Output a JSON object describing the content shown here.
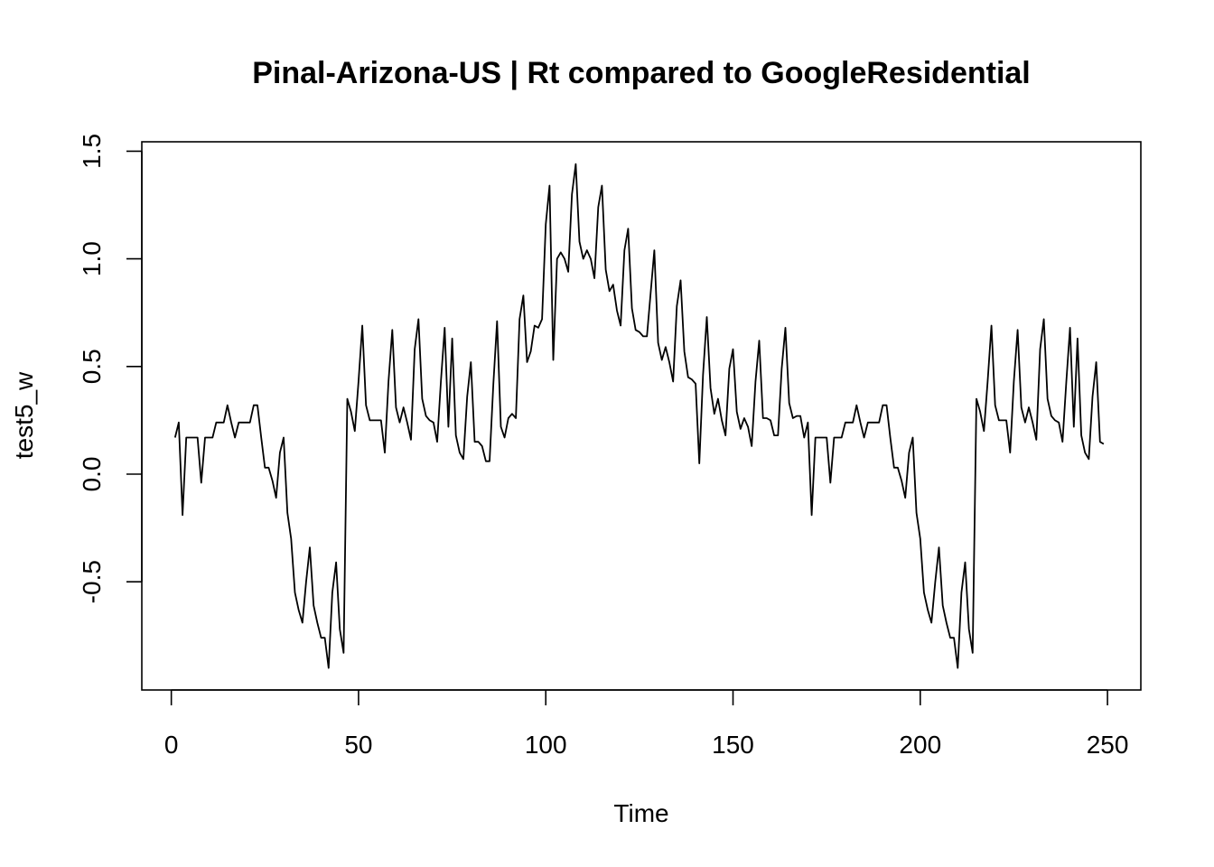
{
  "chart_data": {
    "type": "line",
    "title": "Pinal-Arizona-US | Rt compared to GoogleResidential",
    "xlabel": "Time",
    "ylabel": "test5_w",
    "xlim": [
      1,
      248
    ],
    "ylim": [
      -0.9,
      1.45
    ],
    "xticks": [
      0,
      50,
      100,
      150,
      200,
      250
    ],
    "yticks": [
      -0.5,
      0.0,
      0.5,
      1.0,
      1.5
    ],
    "xtick_labels": [
      "0",
      "50",
      "100",
      "150",
      "200",
      "250"
    ],
    "ytick_labels": [
      "-0.5",
      "0.0",
      "0.5",
      "1.0",
      "1.5"
    ],
    "grid": false,
    "series": [
      {
        "values": [
          0.17,
          0.24,
          -0.19,
          0.17,
          0.17,
          0.17,
          0.17,
          -0.04,
          0.17,
          0.17,
          0.17,
          0.24,
          0.24,
          0.24,
          0.32,
          0.24,
          0.17,
          0.24,
          0.24,
          0.24,
          0.24,
          0.32,
          0.32,
          0.17,
          0.03,
          0.03,
          -0.03,
          -0.11,
          0.1,
          0.17,
          -0.18,
          -0.3,
          -0.55,
          -0.63,
          -0.69,
          -0.5,
          -0.34,
          -0.61,
          -0.69,
          -0.76,
          -0.76,
          -0.9,
          -0.55,
          -0.41,
          -0.72,
          -0.83,
          0.35,
          0.29,
          0.2,
          0.43,
          0.69,
          0.32,
          0.25,
          0.25,
          0.25,
          0.25,
          0.1,
          0.43,
          0.67,
          0.31,
          0.24,
          0.31,
          0.24,
          0.16,
          0.58,
          0.72,
          0.35,
          0.27,
          0.25,
          0.24,
          0.15,
          0.43,
          0.68,
          0.22,
          0.63,
          0.18,
          0.1,
          0.07,
          0.36,
          0.52,
          0.15,
          0.15,
          0.13,
          0.06,
          0.06,
          0.42,
          0.71,
          0.22,
          0.17,
          0.26,
          0.28,
          0.26,
          0.72,
          0.83,
          0.52,
          0.57,
          0.69,
          0.68,
          0.72,
          1.16,
          1.34,
          0.53,
          1.0,
          1.03,
          1.0,
          0.94,
          1.3,
          1.44,
          1.08,
          1.0,
          1.04,
          1.0,
          0.91,
          1.24,
          1.34,
          0.95,
          0.85,
          0.88,
          0.76,
          0.69,
          1.04,
          1.14,
          0.77,
          0.67,
          0.66,
          0.64,
          0.64,
          0.84,
          1.04,
          0.61,
          0.53,
          0.59,
          0.52,
          0.43,
          0.78,
          0.9,
          0.57,
          0.45,
          0.44,
          0.42,
          0.05,
          0.46,
          0.73,
          0.4,
          0.28,
          0.35,
          0.25,
          0.18,
          0.49,
          0.58,
          0.29,
          0.21,
          0.26,
          0.22,
          0.13,
          0.43,
          0.62,
          0.26,
          0.26,
          0.25,
          0.18,
          0.18,
          0.49,
          0.68,
          0.33,
          0.26,
          0.27,
          0.27,
          0.17,
          0.24,
          -0.19,
          0.17,
          0.17,
          0.17,
          0.17,
          -0.04,
          0.17,
          0.17,
          0.17,
          0.24,
          0.24,
          0.24,
          0.32,
          0.24,
          0.17,
          0.24,
          0.24,
          0.24,
          0.24,
          0.32,
          0.32,
          0.17,
          0.03,
          0.03,
          -0.03,
          -0.11,
          0.1,
          0.17,
          -0.18,
          -0.3,
          -0.55,
          -0.63,
          -0.69,
          -0.5,
          -0.34,
          -0.61,
          -0.69,
          -0.76,
          -0.76,
          -0.9,
          -0.55,
          -0.41,
          -0.72,
          -0.83,
          0.35,
          0.29,
          0.2,
          0.43,
          0.69,
          0.32,
          0.25,
          0.25,
          0.25,
          0.1,
          0.43,
          0.67,
          0.31,
          0.24,
          0.31,
          0.24,
          0.16,
          0.58,
          0.72,
          0.35,
          0.27,
          0.25,
          0.24,
          0.15,
          0.43,
          0.68,
          0.22,
          0.63,
          0.18,
          0.1,
          0.07,
          0.36,
          0.52,
          0.15,
          0.14
        ]
      }
    ]
  }
}
